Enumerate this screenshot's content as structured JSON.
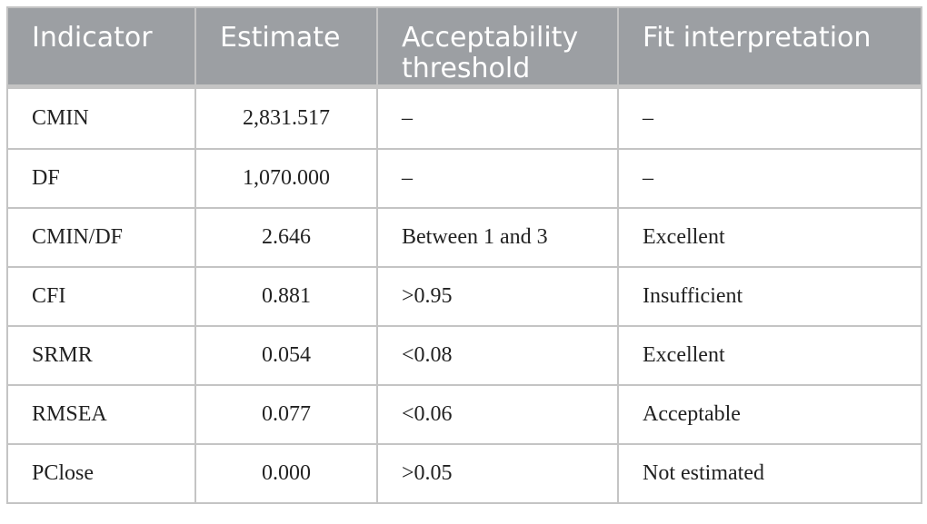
{
  "table": {
    "header": [
      "Indicator",
      "Estimate",
      "Acceptability threshold",
      "Fit interpretation"
    ],
    "rows": [
      [
        "CMIN",
        "2,831.517",
        "–",
        "–"
      ],
      [
        "DF",
        "1,070.000",
        "–",
        "–"
      ],
      [
        "CMIN/DF",
        "2.646",
        "Between 1 and 3",
        "Excellent"
      ],
      [
        "CFI",
        "0.881",
        ">0.95",
        "Insufficient"
      ],
      [
        "SRMR",
        "0.054",
        "<0.08",
        "Excellent"
      ],
      [
        "RMSEA",
        "0.077",
        "<0.06",
        "Acceptable"
      ],
      [
        "PClose",
        "0.000",
        ">0.05",
        "Not estimated"
      ]
    ]
  }
}
